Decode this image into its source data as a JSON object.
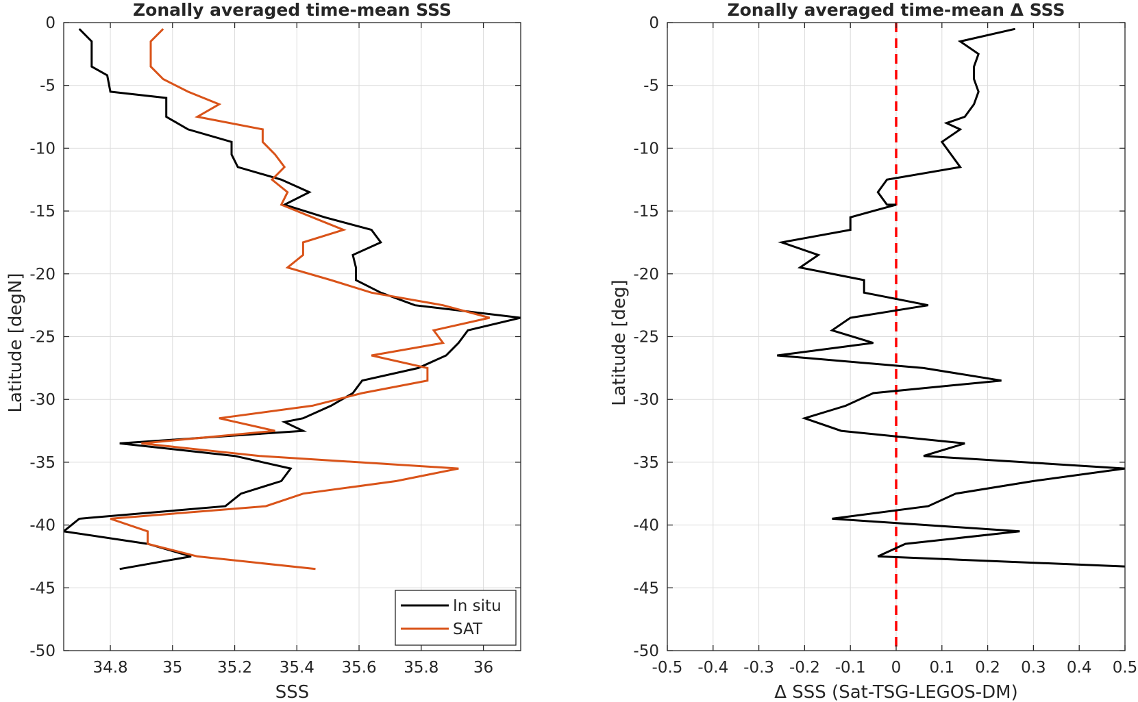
{
  "colors": {
    "insitu": "#000000",
    "sat": "#d95319",
    "zero_line": "#ff0000",
    "grid": "#dcdcdc",
    "axis": "#262626"
  },
  "chart_data": [
    {
      "type": "line",
      "title": "Zonally averaged time-mean SSS",
      "xlabel": "SSS",
      "ylabel": "Latitude [degN]",
      "xlim": [
        34.65,
        36.12
      ],
      "ylim": [
        -50,
        0
      ],
      "xticks": [
        34.8,
        35,
        35.2,
        35.4,
        35.6,
        35.8,
        36
      ],
      "xtick_labels": [
        "34.8",
        "35",
        "35.2",
        "35.4",
        "35.6",
        "35.8",
        "36"
      ],
      "yticks": [
        0,
        -5,
        -10,
        -15,
        -20,
        -25,
        -30,
        -35,
        -40,
        -45,
        -50
      ],
      "ytick_labels": [
        "0",
        "-5",
        "-10",
        "-15",
        "-20",
        "-25",
        "-30",
        "-35",
        "-40",
        "-45",
        "-50"
      ],
      "grid": true,
      "legend_position": "bottom-right",
      "series": [
        {
          "name": "In situ",
          "color_key": "insitu",
          "points": [
            [
              34.7,
              -0.5
            ],
            [
              34.74,
              -1.5
            ],
            [
              34.74,
              -3.5
            ],
            [
              34.79,
              -4.2
            ],
            [
              34.8,
              -5.5
            ],
            [
              34.98,
              -6
            ],
            [
              34.98,
              -7.5
            ],
            [
              35.05,
              -8.5
            ],
            [
              35.19,
              -9.5
            ],
            [
              35.19,
              -10.5
            ],
            [
              35.21,
              -11.5
            ],
            [
              35.35,
              -12.5
            ],
            [
              35.44,
              -13.5
            ],
            [
              35.36,
              -14.5
            ],
            [
              35.49,
              -15.5
            ],
            [
              35.64,
              -16.5
            ],
            [
              35.67,
              -17.5
            ],
            [
              35.58,
              -18.5
            ],
            [
              35.59,
              -19.5
            ],
            [
              35.59,
              -20.5
            ],
            [
              35.67,
              -21.5
            ],
            [
              35.78,
              -22.5
            ],
            [
              36.12,
              -23.5
            ],
            [
              35.95,
              -24.5
            ],
            [
              35.92,
              -25.5
            ],
            [
              35.88,
              -26.5
            ],
            [
              35.79,
              -27.5
            ],
            [
              35.61,
              -28.5
            ],
            [
              35.58,
              -29.5
            ],
            [
              35.51,
              -30.5
            ],
            [
              35.42,
              -31.5
            ],
            [
              35.36,
              -31.8
            ],
            [
              35.42,
              -32.5
            ],
            [
              34.83,
              -33.5
            ],
            [
              35.2,
              -34.5
            ],
            [
              35.38,
              -35.5
            ],
            [
              35.35,
              -36.5
            ],
            [
              35.22,
              -37.5
            ],
            [
              35.17,
              -38.5
            ],
            [
              34.7,
              -39.5
            ],
            [
              34.65,
              -40.5
            ],
            [
              34.92,
              -41.5
            ],
            [
              35.06,
              -42.5
            ],
            [
              34.83,
              -43.5
            ]
          ]
        },
        {
          "name": "SAT",
          "color_key": "sat",
          "points": [
            [
              34.97,
              -0.5
            ],
            [
              34.93,
              -1.5
            ],
            [
              34.93,
              -3.5
            ],
            [
              34.97,
              -4.5
            ],
            [
              35.05,
              -5.5
            ],
            [
              35.15,
              -6.5
            ],
            [
              35.08,
              -7.5
            ],
            [
              35.29,
              -8.5
            ],
            [
              35.29,
              -9.5
            ],
            [
              35.33,
              -10.5
            ],
            [
              35.36,
              -11.5
            ],
            [
              35.32,
              -12.5
            ],
            [
              35.37,
              -13.5
            ],
            [
              35.35,
              -14.5
            ],
            [
              35.45,
              -15.5
            ],
            [
              35.55,
              -16.5
            ],
            [
              35.42,
              -17.5
            ],
            [
              35.42,
              -18.5
            ],
            [
              35.37,
              -19.5
            ],
            [
              35.51,
              -20.5
            ],
            [
              35.64,
              -21.5
            ],
            [
              35.87,
              -22.5
            ],
            [
              36.02,
              -23.5
            ],
            [
              35.84,
              -24.5
            ],
            [
              35.87,
              -25.5
            ],
            [
              35.64,
              -26.5
            ],
            [
              35.82,
              -27.5
            ],
            [
              35.82,
              -28.5
            ],
            [
              35.61,
              -29.5
            ],
            [
              35.45,
              -30.5
            ],
            [
              35.15,
              -31.5
            ],
            [
              35.33,
              -32.5
            ],
            [
              34.9,
              -33.5
            ],
            [
              35.28,
              -34.5
            ],
            [
              35.92,
              -35.5
            ],
            [
              35.72,
              -36.5
            ],
            [
              35.42,
              -37.5
            ],
            [
              35.3,
              -38.5
            ],
            [
              34.8,
              -39.5
            ],
            [
              34.92,
              -40.5
            ],
            [
              34.92,
              -41.5
            ],
            [
              35.08,
              -42.5
            ],
            [
              35.46,
              -43.5
            ]
          ]
        }
      ]
    },
    {
      "type": "line",
      "title": "Zonally averaged time-mean Δ SSS",
      "xlabel": "Δ SSS (Sat-TSG-LEGOS-DM)",
      "ylabel": "Latitude [deg]",
      "xlim": [
        -0.5,
        0.5
      ],
      "ylim": [
        -50,
        0
      ],
      "xticks": [
        -0.5,
        -0.4,
        -0.3,
        -0.2,
        -0.1,
        0,
        0.1,
        0.2,
        0.3,
        0.4,
        0.5
      ],
      "xtick_labels": [
        "-0.5",
        "-0.4",
        "-0.3",
        "-0.2",
        "-0.1",
        "0",
        "0.1",
        "0.2",
        "0.3",
        "0.4",
        "0.5"
      ],
      "yticks": [
        0,
        -5,
        -10,
        -15,
        -20,
        -25,
        -30,
        -35,
        -40,
        -45,
        -50
      ],
      "ytick_labels": [
        "0",
        "-5",
        "-10",
        "-15",
        "-20",
        "-25",
        "-30",
        "-35",
        "-40",
        "-45",
        "-50"
      ],
      "grid": true,
      "reference_line_x": 0,
      "series": [
        {
          "color_key": "insitu",
          "points": [
            [
              0.26,
              -0.5
            ],
            [
              0.14,
              -1.5
            ],
            [
              0.18,
              -2.5
            ],
            [
              0.17,
              -3.5
            ],
            [
              0.17,
              -4.5
            ],
            [
              0.18,
              -5.5
            ],
            [
              0.17,
              -6.5
            ],
            [
              0.15,
              -7.5
            ],
            [
              0.11,
              -8.0
            ],
            [
              0.14,
              -8.5
            ],
            [
              0.1,
              -9.5
            ],
            [
              0.14,
              -11.5
            ],
            [
              -0.02,
              -12.5
            ],
            [
              -0.04,
              -13.5
            ],
            [
              -0.02,
              -14.5
            ],
            [
              0.0,
              -14.5
            ],
            [
              -0.1,
              -15.5
            ],
            [
              -0.1,
              -16.5
            ],
            [
              -0.25,
              -17.5
            ],
            [
              -0.17,
              -18.5
            ],
            [
              -0.21,
              -19.5
            ],
            [
              -0.07,
              -20.5
            ],
            [
              -0.07,
              -21.5
            ],
            [
              0.07,
              -22.5
            ],
            [
              -0.1,
              -23.5
            ],
            [
              -0.14,
              -24.5
            ],
            [
              -0.05,
              -25.5
            ],
            [
              -0.26,
              -26.5
            ],
            [
              0.06,
              -27.5
            ],
            [
              0.23,
              -28.5
            ],
            [
              -0.05,
              -29.5
            ],
            [
              -0.11,
              -30.5
            ],
            [
              -0.2,
              -31.5
            ],
            [
              -0.12,
              -32.5
            ],
            [
              0.15,
              -33.5
            ],
            [
              0.06,
              -34.5
            ],
            [
              0.5,
              -35.5
            ],
            [
              0.3,
              -36.5
            ],
            [
              0.13,
              -37.5
            ],
            [
              0.07,
              -38.5
            ],
            [
              -0.14,
              -39.5
            ],
            [
              0.27,
              -40.5
            ],
            [
              0.02,
              -41.5
            ],
            [
              -0.04,
              -42.5
            ],
            [
              0.5,
              -43.3
            ]
          ]
        }
      ]
    }
  ]
}
